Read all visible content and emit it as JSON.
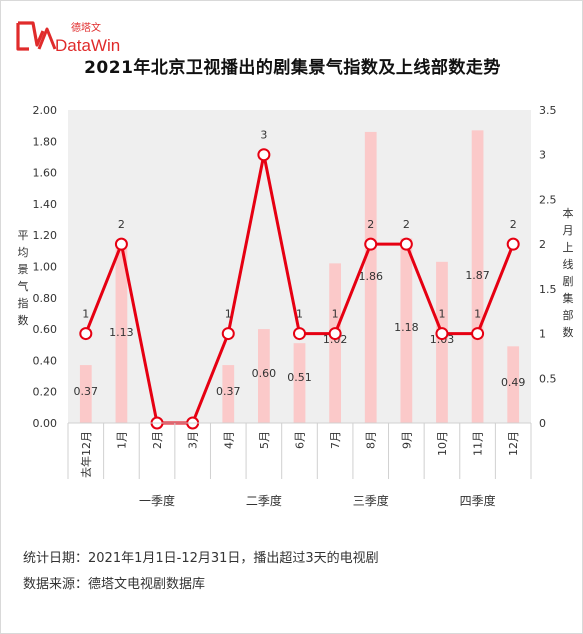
{
  "brand": {
    "name": "DataWin",
    "name_cn": "德塔文",
    "accent": "#e02b2b"
  },
  "title": "2021年北京卫视播出的剧集景气指数及上线部数走势",
  "footer": {
    "line1": "统计日期：2021年1月1日-12月31日，播出超过3天的电视剧",
    "line2": "数据来源：德塔文电视剧数据库"
  },
  "chart_data": {
    "type": "bar+line",
    "categories": [
      "去年12月",
      "1月",
      "2月",
      "3月",
      "4月",
      "5月",
      "6月",
      "7月",
      "8月",
      "9月",
      "10月",
      "11月",
      "12月"
    ],
    "quarters": [
      {
        "label": "一季度",
        "span": [
          1,
          3
        ]
      },
      {
        "label": "二季度",
        "span": [
          4,
          6
        ]
      },
      {
        "label": "三季度",
        "span": [
          7,
          9
        ]
      },
      {
        "label": "四季度",
        "span": [
          10,
          12
        ]
      }
    ],
    "series": [
      {
        "type": "bar",
        "axis": "left",
        "color": "#fbc9c9",
        "values": [
          0.37,
          1.13,
          0,
          0,
          0.37,
          0.6,
          0.51,
          1.02,
          1.86,
          1.18,
          1.03,
          1.87,
          0.49
        ],
        "labels": [
          "0.37",
          "1.13",
          "",
          "",
          "0.37",
          "0.60",
          "0.51",
          "1.02",
          "1.86",
          "1.18",
          "1.03",
          "1.87",
          "0.49"
        ]
      },
      {
        "type": "line",
        "axis": "right",
        "color": "#e60012",
        "values": [
          1,
          2,
          0,
          0,
          1,
          3,
          1,
          1,
          2,
          2,
          1,
          1,
          2
        ],
        "labels": [
          "1",
          "2",
          "",
          "",
          "1",
          "3",
          "1",
          "1",
          "2",
          "2",
          "1",
          "1",
          "2"
        ]
      }
    ],
    "left_axis": {
      "label": "平均景气指数",
      "min": 0,
      "max": 2,
      "ticks": [
        "0.00",
        "0.20",
        "0.40",
        "0.60",
        "0.80",
        "1.00",
        "1.20",
        "1.40",
        "1.60",
        "1.80",
        "2.00"
      ]
    },
    "right_axis": {
      "label": "本月上线剧集部数",
      "min": 0,
      "max": 3.5,
      "ticks": [
        "0",
        "0.5",
        "1",
        "1.5",
        "2",
        "2.5",
        "3",
        "3.5"
      ]
    }
  }
}
